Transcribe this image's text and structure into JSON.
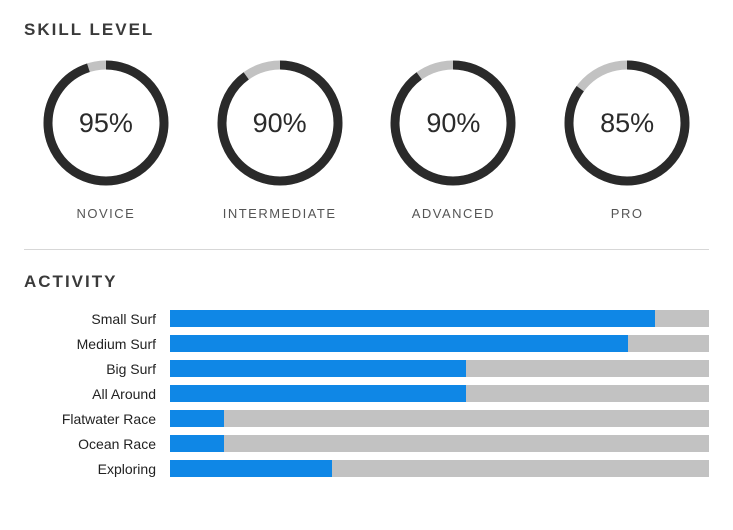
{
  "skill_section": {
    "title": "SKILL LEVEL",
    "donut": {
      "size": 130,
      "stroke_width": 9,
      "radius": 58,
      "track_color": "#c2c2c2",
      "fill_color": "#2a2a2a",
      "percent_fontsize": 27,
      "label_fontsize": 13,
      "label_color": "#555555"
    },
    "items": [
      {
        "label": "NOVICE",
        "percent": 95
      },
      {
        "label": "INTERMEDIATE",
        "percent": 90
      },
      {
        "label": "ADVANCED",
        "percent": 90
      },
      {
        "label": "PRO",
        "percent": 85
      }
    ]
  },
  "divider_color": "#d7d7d7",
  "activity_section": {
    "title": "ACTIVITY",
    "bar": {
      "height": 17,
      "track_color": "#c2c2c2",
      "fill_color": "#0f87e6"
    },
    "label_width": 146,
    "label_fontsize": 14,
    "rows": [
      {
        "label": "Small Surf",
        "percent": 90
      },
      {
        "label": "Medium Surf",
        "percent": 85
      },
      {
        "label": "Big Surf",
        "percent": 55
      },
      {
        "label": "All Around",
        "percent": 55
      },
      {
        "label": "Flatwater Race",
        "percent": 10
      },
      {
        "label": "Ocean Race",
        "percent": 10
      },
      {
        "label": "Exploring",
        "percent": 30
      }
    ]
  }
}
